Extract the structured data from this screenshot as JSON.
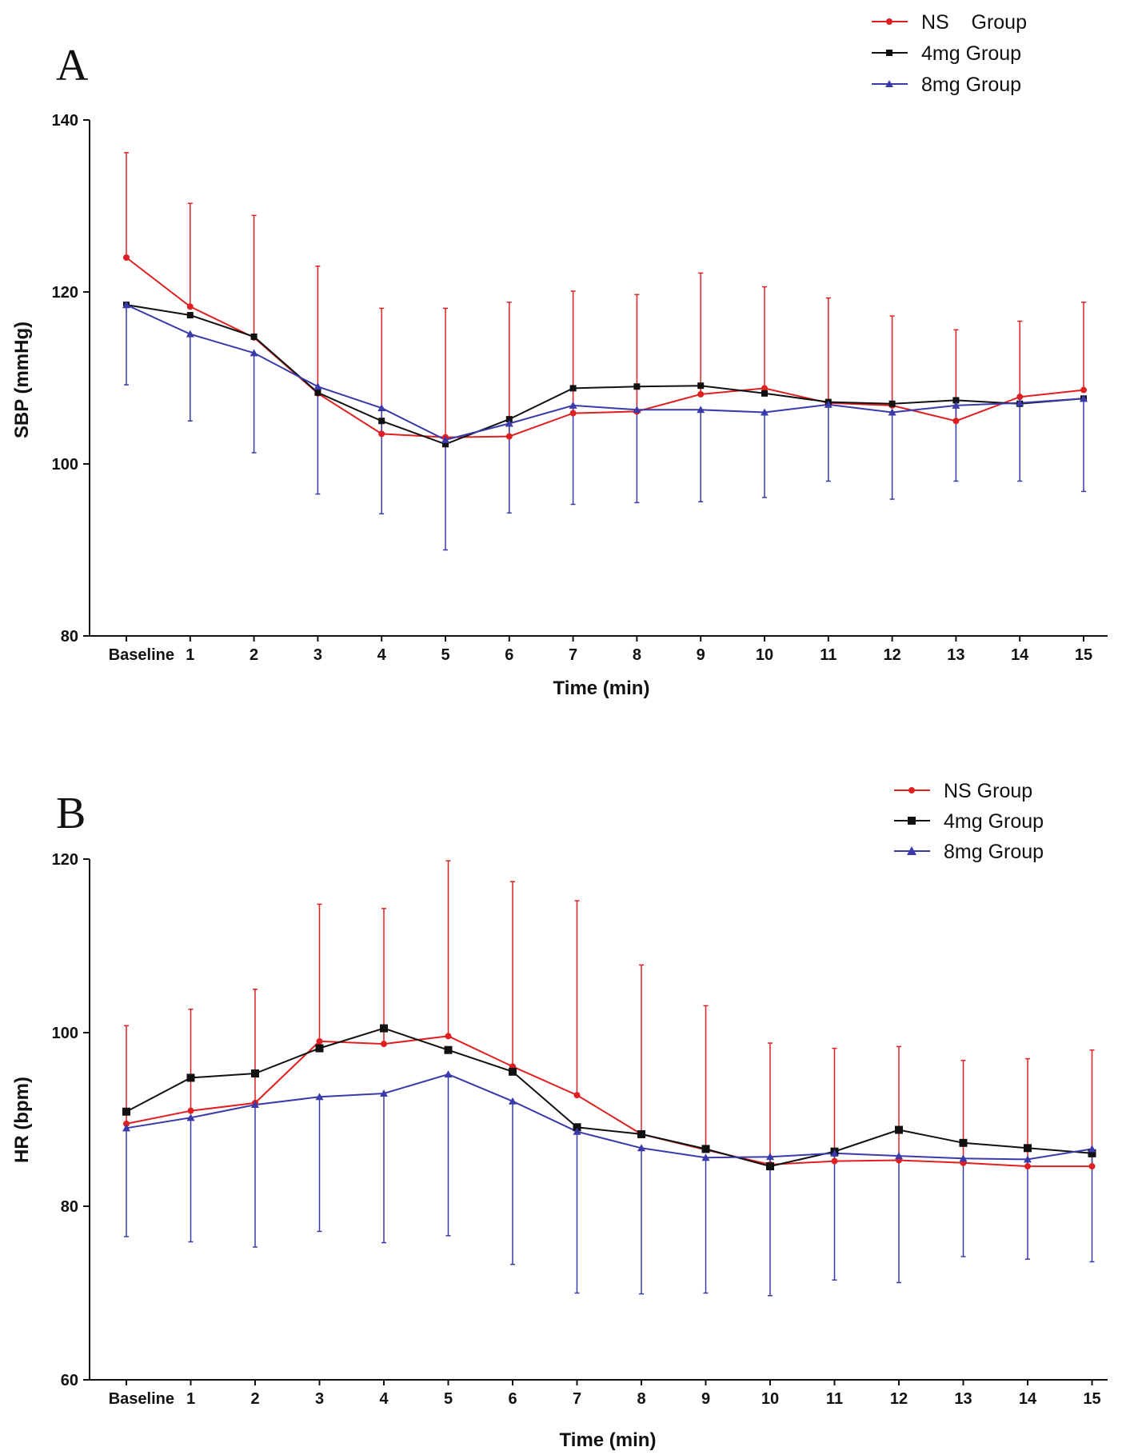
{
  "chart_data": [
    {
      "type": "line",
      "panel_label": "A",
      "title": "",
      "xlabel": "Time (min)",
      "ylabel": "SBP (mmHg)",
      "ylim": [
        80,
        140
      ],
      "yticks": [
        "80",
        "100",
        "120",
        "140"
      ],
      "categories": [
        "Baseline",
        "1",
        "2",
        "3",
        "4",
        "5",
        "6",
        "7",
        "8",
        "9",
        "10",
        "11",
        "12",
        "13",
        "14",
        "15"
      ],
      "legend_position": "top-right",
      "series": [
        {
          "name": "NS Group",
          "legend_label": "NS    Group",
          "color": "#e02020",
          "marker": "circle",
          "error_direction": "up",
          "values": [
            124,
            118.3,
            114.7,
            108.2,
            103.5,
            103.1,
            103.2,
            105.9,
            106.1,
            108.1,
            108.8,
            107.1,
            106.8,
            105.0,
            107.8,
            108.6
          ],
          "errors": [
            12.2,
            12.0,
            14.2,
            14.8,
            14.6,
            15.0,
            15.6,
            14.2,
            13.6,
            14.1,
            11.8,
            12.2,
            10.4,
            10.6,
            8.8,
            10.2
          ]
        },
        {
          "name": "4mg Group",
          "legend_label": "4mg Group",
          "color": "#111111",
          "marker": "square",
          "error_direction": "none",
          "values": [
            118.5,
            117.3,
            114.8,
            108.3,
            105.0,
            102.3,
            105.2,
            108.8,
            109.0,
            109.1,
            108.2,
            107.2,
            107.0,
            107.4,
            107.0,
            107.6
          ],
          "errors": []
        },
        {
          "name": "8mg Group",
          "legend_label": "8mg Group",
          "color": "#3a3aaa",
          "marker": "triangle",
          "error_direction": "down",
          "values": [
            118.5,
            115.1,
            112.9,
            109.0,
            106.5,
            102.8,
            104.7,
            106.8,
            106.3,
            106.3,
            106.0,
            106.9,
            106.0,
            106.8,
            107.1,
            107.6
          ],
          "errors": [
            9.3,
            10.1,
            11.6,
            12.5,
            12.3,
            12.8,
            10.4,
            11.5,
            10.8,
            10.7,
            9.9,
            8.9,
            10.1,
            8.8,
            9.1,
            10.8
          ]
        }
      ]
    },
    {
      "type": "line",
      "panel_label": "B",
      "title": "",
      "xlabel": "Time (min)",
      "ylabel": "HR (bpm)",
      "ylim": [
        60,
        120
      ],
      "yticks": [
        "60",
        "80",
        "100",
        "120"
      ],
      "categories": [
        "Baseline",
        "1",
        "2",
        "3",
        "4",
        "5",
        "6",
        "7",
        "8",
        "9",
        "10",
        "11",
        "12",
        "13",
        "14",
        "15"
      ],
      "legend_position": "top-right",
      "series": [
        {
          "name": "NS Group",
          "legend_label": "NS Group",
          "color": "#e02020",
          "marker": "circle",
          "error_direction": "up",
          "values": [
            89.5,
            91.0,
            91.9,
            99.0,
            98.7,
            99.6,
            96.1,
            92.8,
            88.3,
            86.5,
            84.8,
            85.2,
            85.3,
            85.0,
            84.6,
            84.6
          ],
          "errors": [
            11.3,
            11.7,
            13.1,
            15.8,
            15.6,
            20.2,
            21.3,
            22.4,
            19.5,
            16.6,
            14.0,
            13.0,
            13.1,
            11.8,
            12.4,
            13.4
          ]
        },
        {
          "name": "4mg Group",
          "legend_label": "4mg Group",
          "color": "#111111",
          "marker": "square",
          "error_direction": "none",
          "values": [
            90.9,
            94.8,
            95.3,
            98.2,
            100.5,
            98.0,
            95.5,
            89.1,
            88.3,
            86.6,
            84.6,
            86.3,
            88.8,
            87.3,
            86.7,
            86.1
          ],
          "errors": []
        },
        {
          "name": "8mg Group",
          "legend_label": "8mg Group",
          "color": "#3a3aaa",
          "marker": "triangle",
          "error_direction": "down",
          "values": [
            89.0,
            90.2,
            91.7,
            92.6,
            93.0,
            95.2,
            92.1,
            88.6,
            86.7,
            85.6,
            85.7,
            86.1,
            85.8,
            85.5,
            85.4,
            86.6
          ],
          "errors": [
            12.5,
            14.3,
            16.4,
            15.5,
            17.2,
            18.6,
            18.8,
            18.6,
            16.8,
            15.6,
            16.0,
            14.6,
            14.6,
            11.3,
            11.5,
            13.0
          ]
        }
      ]
    }
  ]
}
